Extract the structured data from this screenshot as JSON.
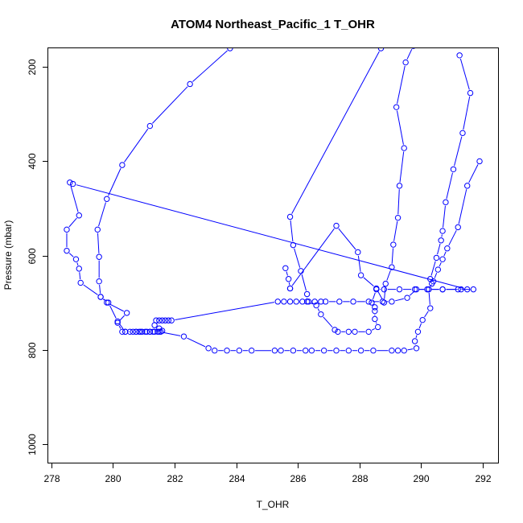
{
  "chart_data": {
    "type": "scatter",
    "title": "ATOM4 Northeast_Pacific_1 T_OHR",
    "xlabel": "T_OHR",
    "ylabel": "Pressure (mbar)",
    "xlim": [
      277.9,
      292.5
    ],
    "ylim": [
      1040,
      160
    ],
    "y_reversed": true,
    "x_ticks": [
      278,
      280,
      282,
      284,
      286,
      288,
      290,
      292
    ],
    "y_ticks": [
      200,
      400,
      600,
      800,
      1000
    ],
    "grid": false,
    "series_color": "#0000ff",
    "series": [
      {
        "marker": "open-circle",
        "connected": true,
        "points": [
          [
            283.8,
            160
          ],
          [
            282.5,
            236
          ],
          [
            281.2,
            325
          ],
          [
            280.3,
            408
          ],
          [
            279.8,
            480
          ],
          [
            279.5,
            545
          ],
          [
            279.55,
            603
          ],
          [
            279.55,
            655
          ],
          [
            279.6,
            688
          ],
          [
            279.8,
            700
          ],
          [
            280.45,
            722
          ],
          [
            280.15,
            743
          ],
          [
            280.3,
            762
          ],
          [
            280.4,
            762
          ],
          [
            280.65,
            762
          ],
          [
            280.75,
            762
          ],
          [
            280.85,
            762
          ],
          [
            280.95,
            762
          ],
          [
            281.1,
            762
          ],
          [
            281.2,
            762
          ],
          [
            281.3,
            762
          ],
          [
            281.45,
            762
          ],
          [
            281.55,
            762
          ],
          [
            281.6,
            760
          ],
          [
            281.5,
            755
          ],
          [
            281.35,
            748
          ],
          [
            281.4,
            738
          ],
          [
            281.5,
            738
          ],
          [
            281.6,
            738
          ],
          [
            281.7,
            738
          ],
          [
            281.8,
            738
          ],
          [
            281.9,
            738
          ],
          [
            285.35,
            698
          ],
          [
            285.55,
            698
          ],
          [
            285.75,
            698
          ],
          [
            285.95,
            698
          ],
          [
            286.15,
            698
          ],
          [
            286.35,
            698
          ],
          [
            286.55,
            698
          ],
          [
            286.75,
            698
          ],
          [
            286.9,
            698
          ],
          [
            287.35,
            698
          ],
          [
            287.8,
            698
          ],
          [
            288.3,
            698
          ],
          [
            288.75,
            698
          ],
          [
            289.05,
            698
          ],
          [
            289.55,
            690
          ],
          [
            289.85,
            672
          ],
          [
            290.25,
            672
          ],
          [
            290.7,
            672
          ],
          [
            291.2,
            672
          ],
          [
            291.7,
            672
          ]
        ]
      },
      {
        "marker": "open-circle",
        "connected": true,
        "points": [
          [
            278.6,
            445
          ],
          [
            278.9,
            515
          ],
          [
            278.5,
            545
          ],
          [
            278.5,
            590
          ],
          [
            278.8,
            608
          ],
          [
            278.9,
            628
          ],
          [
            278.95,
            658
          ],
          [
            279.6,
            688
          ],
          [
            279.85,
            700
          ],
          [
            280.15,
            740
          ],
          [
            280.4,
            762
          ],
          [
            280.55,
            762
          ],
          [
            280.75,
            762
          ],
          [
            280.9,
            762
          ],
          [
            281.05,
            762
          ],
          [
            281.2,
            762
          ],
          [
            281.35,
            762
          ],
          [
            281.5,
            762
          ],
          [
            282.3,
            772
          ],
          [
            283.1,
            797
          ],
          [
            283.3,
            802
          ],
          [
            283.7,
            802
          ],
          [
            284.1,
            802
          ],
          [
            284.5,
            802
          ],
          [
            285.25,
            802
          ],
          [
            285.45,
            802
          ],
          [
            285.85,
            802
          ],
          [
            286.25,
            802
          ],
          [
            286.45,
            802
          ],
          [
            286.85,
            802
          ],
          [
            287.25,
            802
          ],
          [
            287.65,
            802
          ],
          [
            288.05,
            802
          ],
          [
            288.45,
            802
          ],
          [
            289.05,
            802
          ],
          [
            289.25,
            802
          ],
          [
            289.45,
            802
          ],
          [
            289.85,
            797
          ],
          [
            289.8,
            782
          ],
          [
            289.9,
            762
          ],
          [
            290.05,
            737
          ],
          [
            290.3,
            712
          ],
          [
            290.25,
            672
          ],
          [
            290.4,
            655
          ],
          [
            290.55,
            630
          ],
          [
            290.7,
            608
          ],
          [
            290.85,
            585
          ],
          [
            291.2,
            540
          ],
          [
            291.5,
            452
          ],
          [
            291.9,
            400
          ]
        ]
      },
      {
        "marker": "open-circle",
        "connected": true,
        "points": [
          [
            278.7,
            448
          ],
          [
            291.5,
            672
          ],
          [
            291.3,
            672
          ],
          [
            290.7,
            672
          ],
          [
            290.2,
            672
          ],
          [
            289.8,
            672
          ],
          [
            289.3,
            672
          ],
          [
            288.8,
            672
          ],
          [
            288.55,
            672
          ],
          [
            288.4,
            700
          ],
          [
            288.5,
            710
          ],
          [
            288.5,
            718
          ],
          [
            288.5,
            735
          ],
          [
            288.6,
            752
          ],
          [
            288.3,
            762
          ],
          [
            287.85,
            762
          ],
          [
            287.65,
            762
          ],
          [
            287.3,
            762
          ],
          [
            287.2,
            758
          ],
          [
            286.75,
            725
          ],
          [
            286.6,
            706
          ],
          [
            286.3,
            698
          ],
          [
            286.3,
            682
          ],
          [
            286.1,
            633
          ],
          [
            285.85,
            578
          ],
          [
            285.75,
            518
          ],
          [
            288.7,
            160
          ]
        ]
      },
      {
        "marker": "open-circle",
        "connected": true,
        "points": [
          [
            285.75,
            670
          ],
          [
            287.25,
            537
          ],
          [
            287.95,
            593
          ],
          [
            288.05,
            642
          ],
          [
            288.55,
            670
          ],
          [
            288.8,
            700
          ],
          [
            288.85,
            660
          ],
          [
            289.05,
            625
          ],
          [
            289.1,
            577
          ],
          [
            289.25,
            520
          ],
          [
            289.3,
            452
          ],
          [
            289.45,
            372
          ],
          [
            289.2,
            285
          ],
          [
            289.5,
            190
          ],
          [
            289.75,
            155
          ]
        ]
      },
      {
        "marker": "open-circle",
        "connected": true,
        "points": [
          [
            285.6,
            627
          ],
          [
            285.7,
            650
          ],
          [
            285.75,
            670
          ]
        ]
      },
      {
        "marker": "open-circle",
        "connected": true,
        "points": [
          [
            291.25,
            175
          ],
          [
            291.6,
            255
          ],
          [
            291.35,
            340
          ],
          [
            291.05,
            417
          ],
          [
            290.8,
            487
          ],
          [
            290.7,
            548
          ],
          [
            290.65,
            568
          ],
          [
            290.5,
            605
          ],
          [
            290.3,
            650
          ],
          [
            290.35,
            660
          ]
        ]
      }
    ]
  }
}
